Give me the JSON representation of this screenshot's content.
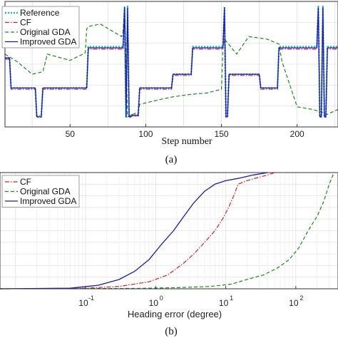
{
  "chart_data": [
    {
      "type": "line",
      "caption": "(a)",
      "xlabel": "Step number",
      "ylabel": "",
      "xlim": [
        7,
        227
      ],
      "ylim": [
        0,
        100
      ],
      "xticks": [
        50,
        100,
        150,
        200
      ],
      "grid": true,
      "legend_position": "top-left",
      "series": [
        {
          "name": "Reference",
          "color": "#22b5d6",
          "dash": "dotted",
          "x": [
            7,
            10,
            11,
            27,
            28,
            31,
            32,
            61,
            62,
            85,
            86,
            87,
            88,
            89,
            90,
            91,
            95,
            96,
            117,
            118,
            130,
            131,
            151,
            152,
            153,
            154,
            155,
            156,
            175,
            176,
            187,
            188,
            213,
            214,
            215,
            216,
            217,
            218,
            219,
            220,
            227
          ],
          "y": [
            55,
            55,
            31,
            31,
            8,
            8,
            31,
            31,
            64,
            64,
            96,
            8,
            96,
            8,
            8,
            9,
            9,
            31,
            31,
            42,
            42,
            64,
            64,
            96,
            8,
            8,
            42,
            42,
            42,
            31,
            31,
            64,
            64,
            96,
            8,
            8,
            96,
            8,
            8,
            64,
            64
          ]
        },
        {
          "name": "CF",
          "color": "#d42020",
          "dash": "dashdot",
          "x": [
            7,
            10,
            11,
            27,
            28,
            31,
            32,
            61,
            62,
            85,
            86,
            87,
            88,
            89,
            90,
            91,
            95,
            96,
            117,
            118,
            130,
            131,
            151,
            152,
            153,
            154,
            155,
            156,
            175,
            176,
            187,
            188,
            213,
            214,
            215,
            216,
            217,
            218,
            219,
            220,
            227
          ],
          "y": [
            54,
            54,
            30,
            30,
            9,
            9,
            30,
            30,
            62,
            62,
            93,
            9,
            93,
            9,
            9,
            10,
            10,
            30,
            30,
            41,
            41,
            62,
            62,
            93,
            9,
            9,
            41,
            41,
            41,
            30,
            30,
            62,
            62,
            93,
            9,
            9,
            93,
            9,
            9,
            62,
            62
          ]
        },
        {
          "name": "Original GDA",
          "color": "#1a8a1a",
          "dash": "dashed",
          "x": [
            7,
            15,
            25,
            32,
            35,
            50,
            60,
            61,
            62,
            70,
            84,
            85,
            86,
            88,
            95,
            96,
            110,
            118,
            130,
            140,
            150,
            151,
            152,
            160,
            168,
            180,
            188,
            190,
            200,
            210,
            216,
            220,
            227
          ],
          "y": [
            58,
            52,
            42,
            44,
            58,
            53,
            59,
            78,
            80,
            82,
            72,
            76,
            96,
            8,
            12,
            18,
            22,
            24,
            26,
            27,
            30,
            64,
            70,
            58,
            72,
            70,
            66,
            52,
            16,
            14,
            12,
            10,
            14
          ]
        },
        {
          "name": "Improved GDA",
          "color": "#1a1ab8",
          "dash": "solid",
          "x": [
            7,
            10,
            11,
            27,
            28,
            31,
            32,
            61,
            62,
            85,
            86,
            87,
            88,
            89,
            90,
            91,
            95,
            96,
            117,
            118,
            130,
            131,
            151,
            152,
            153,
            154,
            155,
            156,
            175,
            176,
            187,
            188,
            213,
            214,
            215,
            216,
            217,
            218,
            219,
            220,
            227
          ],
          "y": [
            55,
            55,
            31,
            31,
            8,
            8,
            31,
            31,
            63,
            63,
            95,
            8,
            95,
            8,
            8,
            9,
            9,
            31,
            31,
            42,
            42,
            63,
            63,
            95,
            8,
            8,
            42,
            42,
            42,
            31,
            31,
            63,
            63,
            95,
            8,
            8,
            95,
            8,
            8,
            63,
            63
          ]
        }
      ]
    },
    {
      "type": "line",
      "caption": "(b)",
      "xlabel": "Heading error (degree)",
      "ylabel": "",
      "x_scale": "log",
      "xlim": [
        0.006,
        400
      ],
      "ylim": [
        0,
        1
      ],
      "xticks": [
        0.1,
        1,
        10,
        100
      ],
      "xtick_labels": [
        {
          "base": "10",
          "exp": "-1"
        },
        {
          "base": "10",
          "exp": "0"
        },
        {
          "base": "10",
          "exp": "1"
        },
        {
          "base": "10",
          "exp": "2"
        }
      ],
      "grid": true,
      "legend_position": "top-left",
      "series": [
        {
          "name": "CF",
          "color": "#d42020",
          "dash": "dashdot",
          "x": [
            0.006,
            0.1,
            0.3,
            0.8,
            1.5,
            2.5,
            3.5,
            5,
            7,
            9,
            11,
            13,
            15,
            20,
            30,
            40,
            50
          ],
          "y": [
            0,
            0.005,
            0.02,
            0.06,
            0.12,
            0.22,
            0.3,
            0.4,
            0.5,
            0.6,
            0.7,
            0.8,
            0.9,
            0.93,
            0.96,
            0.98,
            1.0
          ]
        },
        {
          "name": "Original GDA",
          "color": "#1a8a1a",
          "dash": "dashed",
          "x": [
            0.006,
            0.5,
            2,
            6,
            12,
            20,
            35,
            55,
            80,
            110,
            150,
            200,
            250,
            300,
            350
          ],
          "y": [
            0,
            0.003,
            0.01,
            0.02,
            0.04,
            0.08,
            0.12,
            0.18,
            0.25,
            0.35,
            0.5,
            0.62,
            0.75,
            0.9,
            1.0
          ]
        },
        {
          "name": "Improved GDA",
          "color": "#1a1ab8",
          "dash": "solid",
          "x": [
            0.006,
            0.06,
            0.15,
            0.3,
            0.5,
            0.8,
            1.2,
            1.8,
            2.5,
            3.5,
            5,
            7,
            10,
            15,
            25,
            40
          ],
          "y": [
            0,
            0.005,
            0.03,
            0.08,
            0.15,
            0.25,
            0.38,
            0.5,
            0.62,
            0.74,
            0.84,
            0.9,
            0.93,
            0.95,
            0.98,
            1.0
          ]
        }
      ]
    }
  ]
}
